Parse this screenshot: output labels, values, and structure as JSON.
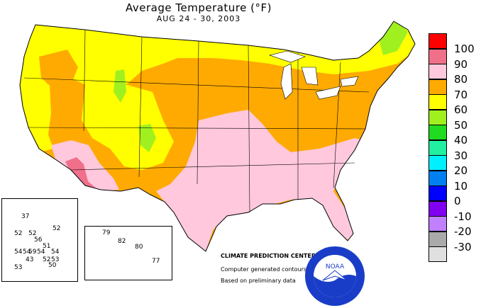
{
  "map": {
    "title": "Average Temperature (°F)",
    "subtitle": "AUG 24 - 30, 2003"
  },
  "legend": {
    "entries": [
      {
        "label": "100",
        "color": "#ff0000"
      },
      {
        "label": "90",
        "color": "#f0708a"
      },
      {
        "label": "80",
        "color": "#ffc8dc"
      },
      {
        "label": "70",
        "color": "#ffaa00"
      },
      {
        "label": "60",
        "color": "#ffff00"
      },
      {
        "label": "50",
        "color": "#a0f020"
      },
      {
        "label": "40",
        "color": "#20dc20"
      },
      {
        "label": "30",
        "color": "#20f0a0"
      },
      {
        "label": "20",
        "color": "#00f0ff"
      },
      {
        "label": "10",
        "color": "#0080f0"
      },
      {
        "label": "0",
        "color": "#0000ff"
      },
      {
        "label": "-10",
        "color": "#8000f0"
      },
      {
        "label": "-20",
        "color": "#c080ff"
      },
      {
        "label": "-30",
        "color": "#aaaaaa"
      },
      {
        "label": "",
        "color": "#e0e0e0"
      }
    ]
  },
  "credits": {
    "center": "CLIMATE PREDICTION CENTER, NOAA",
    "line1": "Computer generated contours",
    "line2": "Based on preliminary data"
  },
  "alaska": {
    "values": [
      "37",
      "52",
      "52",
      "52",
      "56",
      "51",
      "54",
      "54",
      "59",
      "54",
      "54",
      "43",
      "52",
      "53",
      "50",
      "53"
    ]
  },
  "hawaii": {
    "values": [
      "79",
      "82",
      "80",
      "77"
    ]
  },
  "logo": {
    "text": "NOAA"
  }
}
